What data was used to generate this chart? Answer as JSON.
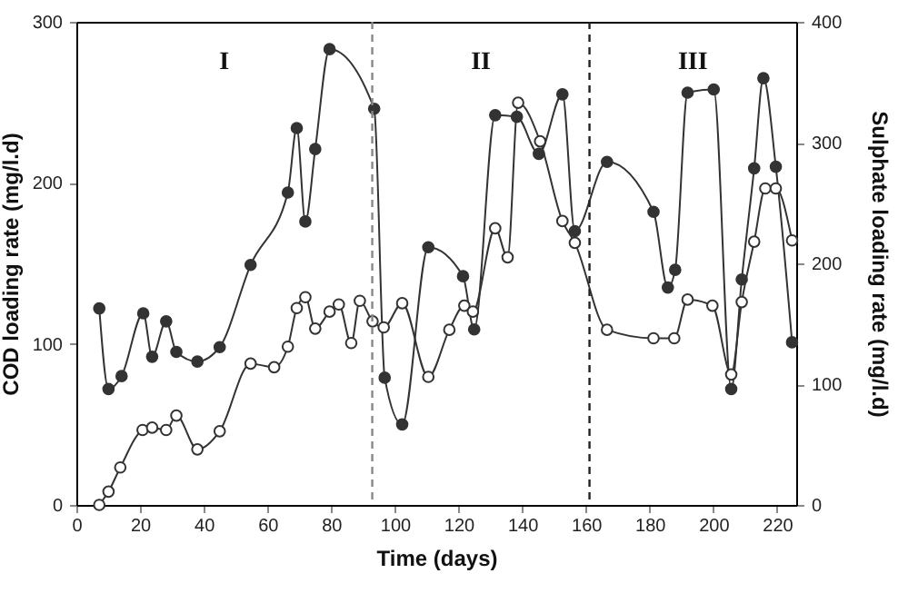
{
  "chart_data": {
    "type": "line",
    "xlabel": "Time (days)",
    "ylabel": "COD loading rate (mg/l.d)",
    "y2label": "Sulphate loading rate (mg/l.d)",
    "xlim": [
      0,
      226
    ],
    "xticks": [
      0,
      20,
      40,
      60,
      80,
      100,
      120,
      140,
      160,
      180,
      200,
      220
    ],
    "ylim": [
      0,
      300
    ],
    "yticks": [
      0,
      100,
      200,
      300
    ],
    "y2lim": [
      0,
      400
    ],
    "y2ticks": [
      0,
      100,
      200,
      300,
      400
    ],
    "grid": false,
    "marker": "circle",
    "line_style": "solid",
    "series": [
      {
        "color": "#333333",
        "x": [
          7.2,
          10.1,
          14.2,
          21,
          23.8,
          28.2,
          31.4,
          38,
          45,
          54.7,
          66.4,
          69.2,
          71.9,
          75,
          79.5,
          93.5,
          96.8,
          102.3,
          110.5,
          121.4,
          124.9,
          131.5,
          138.3,
          145.2,
          152.6,
          156.5,
          166.6,
          181.2,
          185.7,
          188,
          191.9,
          200.1,
          205.6,
          208.9,
          212.8,
          215.7,
          219.6,
          224.7
        ],
        "values": [
          122,
          72,
          80,
          119,
          92,
          114,
          95,
          89,
          98,
          149,
          194,
          234,
          176,
          221,
          283,
          246,
          79,
          50,
          160,
          142,
          109,
          242,
          241,
          218,
          255,
          170,
          213,
          182,
          135,
          146,
          256,
          258,
          72,
          140,
          209,
          265,
          210,
          101
        ]
      },
      {
        "color": "#333333",
        "axis": "y2",
        "x": [
          7.2,
          10.1,
          13.8,
          20.8,
          23.8,
          28.2,
          31.4,
          38,
          45,
          54.7,
          62.1,
          66.4,
          69.2,
          71.9,
          75,
          79.5,
          82.4,
          86.3,
          89,
          93,
          96.5,
          102.3,
          110.5,
          117.1,
          121.8,
          124.5,
          131.5,
          135.4,
          138.7,
          145.6,
          152.6,
          156.5,
          166.6,
          181.2,
          187.7,
          191.9,
          199.7,
          205.6,
          208.9,
          212.8,
          216.3,
          219.6,
          224.7
        ],
        "values": [
          0,
          11,
          31,
          62,
          64,
          62,
          74,
          46,
          61,
          117,
          114,
          131,
          163,
          172,
          146,
          160,
          166,
          134,
          169,
          152,
          147,
          167,
          106,
          145,
          165,
          160,
          229,
          205,
          333,
          301,
          235,
          217,
          145,
          138,
          138,
          170,
          165,
          108,
          168,
          218,
          262,
          262,
          219
        ]
      }
    ],
    "ref_lines": [
      {
        "axis": "x",
        "value": 92.9,
        "color": "#888888",
        "line_style": "dashed"
      },
      {
        "axis": "x",
        "value": 161.1,
        "color": "#222222",
        "line_style": "dashed"
      }
    ],
    "annotations": [
      "I",
      "II",
      "III"
    ]
  }
}
